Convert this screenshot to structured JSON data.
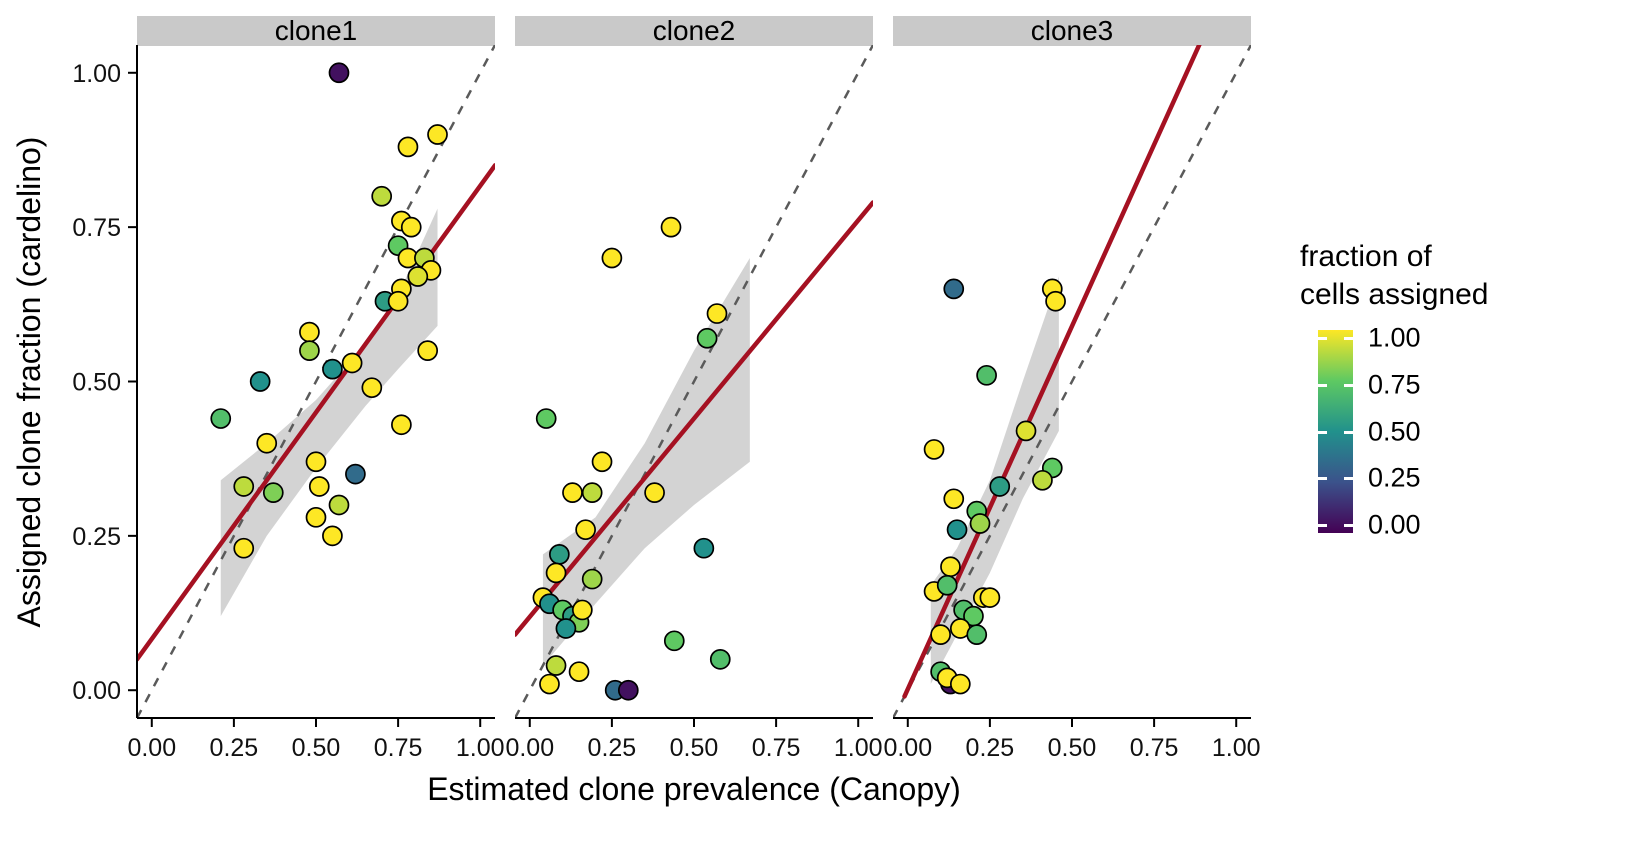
{
  "chart_data": {
    "type": "scatter",
    "title": "",
    "xlabel": "Estimated clone prevalence (Canopy)",
    "ylabel": "Assigned clone fraction (cardelino)",
    "x_ticks": [
      0,
      0.25,
      0.5,
      0.75,
      1
    ],
    "y_ticks": [
      0,
      0.25,
      0.5,
      0.75,
      1
    ],
    "tick_labels": [
      "0.00",
      "0.25",
      "0.50",
      "0.75",
      "1.00"
    ],
    "xlim": [
      -0.045,
      1.045
    ],
    "ylim": [
      -0.045,
      1.045
    ],
    "grid": "off",
    "identity_line": {
      "style": "dashed",
      "color": "#5a5a5a"
    },
    "fit_line_color": "#a51122",
    "ribbon_color": "#9e9e9e",
    "legend": {
      "title": "fraction of\ncells assigned",
      "position": "right",
      "ticks": [
        "1.00",
        "0.75",
        "0.50",
        "0.25",
        "0.00"
      ],
      "viridis_stops": [
        "#440154",
        "#3b528b",
        "#21918c",
        "#5ec962",
        "#fde725"
      ]
    },
    "panels": [
      {
        "label": "clone1",
        "fit": {
          "x1": -0.045,
          "y1": 0.05,
          "x2": 1.045,
          "y2": 0.85
        },
        "ribbon": {
          "x": [
            0.21,
            0.35,
            0.5,
            0.65,
            0.75,
            0.87
          ],
          "ylow": [
            0.12,
            0.25,
            0.36,
            0.46,
            0.52,
            0.59
          ],
          "yhigh": [
            0.34,
            0.4,
            0.47,
            0.56,
            0.64,
            0.78
          ]
        },
        "points": [
          [
            0.57,
            1.0,
            0.05
          ],
          [
            0.78,
            0.88,
            1
          ],
          [
            0.87,
            0.9,
            1
          ],
          [
            0.7,
            0.8,
            0.9
          ],
          [
            0.76,
            0.76,
            1
          ],
          [
            0.79,
            0.75,
            1
          ],
          [
            0.75,
            0.72,
            0.75
          ],
          [
            0.78,
            0.7,
            1
          ],
          [
            0.83,
            0.7,
            0.9
          ],
          [
            0.85,
            0.68,
            1
          ],
          [
            0.81,
            0.67,
            0.95
          ],
          [
            0.76,
            0.65,
            1
          ],
          [
            0.71,
            0.63,
            0.55
          ],
          [
            0.75,
            0.63,
            1
          ],
          [
            0.48,
            0.58,
            1
          ],
          [
            0.48,
            0.55,
            0.85
          ],
          [
            0.55,
            0.52,
            0.5
          ],
          [
            0.61,
            0.53,
            1
          ],
          [
            0.84,
            0.55,
            1
          ],
          [
            0.67,
            0.49,
            1
          ],
          [
            0.33,
            0.5,
            0.5
          ],
          [
            0.21,
            0.44,
            0.7
          ],
          [
            0.76,
            0.43,
            1
          ],
          [
            0.35,
            0.4,
            1
          ],
          [
            0.5,
            0.37,
            1
          ],
          [
            0.62,
            0.35,
            0.35
          ],
          [
            0.28,
            0.33,
            0.9
          ],
          [
            0.37,
            0.32,
            0.8
          ],
          [
            0.51,
            0.33,
            1
          ],
          [
            0.5,
            0.28,
            1
          ],
          [
            0.57,
            0.3,
            0.9
          ],
          [
            0.28,
            0.23,
            1
          ],
          [
            0.55,
            0.25,
            1
          ]
        ]
      },
      {
        "label": "clone2",
        "fit": {
          "x1": -0.045,
          "y1": 0.09,
          "x2": 1.045,
          "y2": 0.79
        },
        "ribbon": {
          "x": [
            0.04,
            0.2,
            0.35,
            0.5,
            0.67
          ],
          "ylow": [
            0.04,
            0.14,
            0.23,
            0.3,
            0.37
          ],
          "yhigh": [
            0.22,
            0.28,
            0.4,
            0.55,
            0.7
          ]
        },
        "points": [
          [
            0.43,
            0.75,
            1
          ],
          [
            0.25,
            0.7,
            1
          ],
          [
            0.57,
            0.61,
            1
          ],
          [
            0.54,
            0.57,
            0.75
          ],
          [
            0.05,
            0.44,
            0.75
          ],
          [
            0.22,
            0.37,
            1
          ],
          [
            0.13,
            0.32,
            1
          ],
          [
            0.19,
            0.32,
            0.9
          ],
          [
            0.38,
            0.32,
            1
          ],
          [
            0.17,
            0.26,
            1
          ],
          [
            0.53,
            0.23,
            0.5
          ],
          [
            0.09,
            0.22,
            0.55
          ],
          [
            0.08,
            0.19,
            1
          ],
          [
            0.19,
            0.18,
            0.85
          ],
          [
            0.04,
            0.15,
            1
          ],
          [
            0.06,
            0.14,
            0.5
          ],
          [
            0.1,
            0.13,
            0.75
          ],
          [
            0.13,
            0.12,
            0.55
          ],
          [
            0.15,
            0.11,
            0.8
          ],
          [
            0.16,
            0.13,
            1
          ],
          [
            0.11,
            0.1,
            0.5
          ],
          [
            0.44,
            0.08,
            0.75
          ],
          [
            0.58,
            0.05,
            0.7
          ],
          [
            0.08,
            0.04,
            0.9
          ],
          [
            0.15,
            0.03,
            1
          ],
          [
            0.06,
            0.01,
            1
          ],
          [
            0.26,
            0.0,
            0.35
          ],
          [
            0.3,
            0.0,
            0.05
          ]
        ]
      },
      {
        "label": "clone3",
        "fit": {
          "x1": -0.01,
          "y1": -0.01,
          "x2": 0.9,
          "y2": 1.06
        },
        "ribbon": {
          "x": [
            0.07,
            0.15,
            0.25,
            0.35,
            0.46
          ],
          "ylow": [
            0.01,
            0.09,
            0.19,
            0.31,
            0.42
          ],
          "yhigh": [
            0.17,
            0.23,
            0.34,
            0.5,
            0.67
          ]
        },
        "points": [
          [
            0.14,
            0.65,
            0.35
          ],
          [
            0.44,
            0.65,
            1
          ],
          [
            0.45,
            0.63,
            1
          ],
          [
            0.24,
            0.51,
            0.7
          ],
          [
            0.08,
            0.39,
            1
          ],
          [
            0.36,
            0.42,
            0.95
          ],
          [
            0.44,
            0.36,
            0.75
          ],
          [
            0.41,
            0.34,
            0.9
          ],
          [
            0.28,
            0.33,
            0.55
          ],
          [
            0.14,
            0.31,
            1
          ],
          [
            0.21,
            0.29,
            0.75
          ],
          [
            0.15,
            0.26,
            0.5
          ],
          [
            0.22,
            0.27,
            0.85
          ],
          [
            0.08,
            0.16,
            1
          ],
          [
            0.13,
            0.2,
            1
          ],
          [
            0.12,
            0.17,
            0.7
          ],
          [
            0.23,
            0.15,
            1
          ],
          [
            0.17,
            0.13,
            0.7
          ],
          [
            0.2,
            0.12,
            0.75
          ],
          [
            0.25,
            0.15,
            1
          ],
          [
            0.1,
            0.09,
            1
          ],
          [
            0.16,
            0.1,
            1
          ],
          [
            0.21,
            0.09,
            0.7
          ],
          [
            0.1,
            0.03,
            0.7
          ],
          [
            0.13,
            0.01,
            0.05
          ],
          [
            0.12,
            0.02,
            1
          ],
          [
            0.16,
            0.01,
            1
          ]
        ]
      }
    ]
  }
}
